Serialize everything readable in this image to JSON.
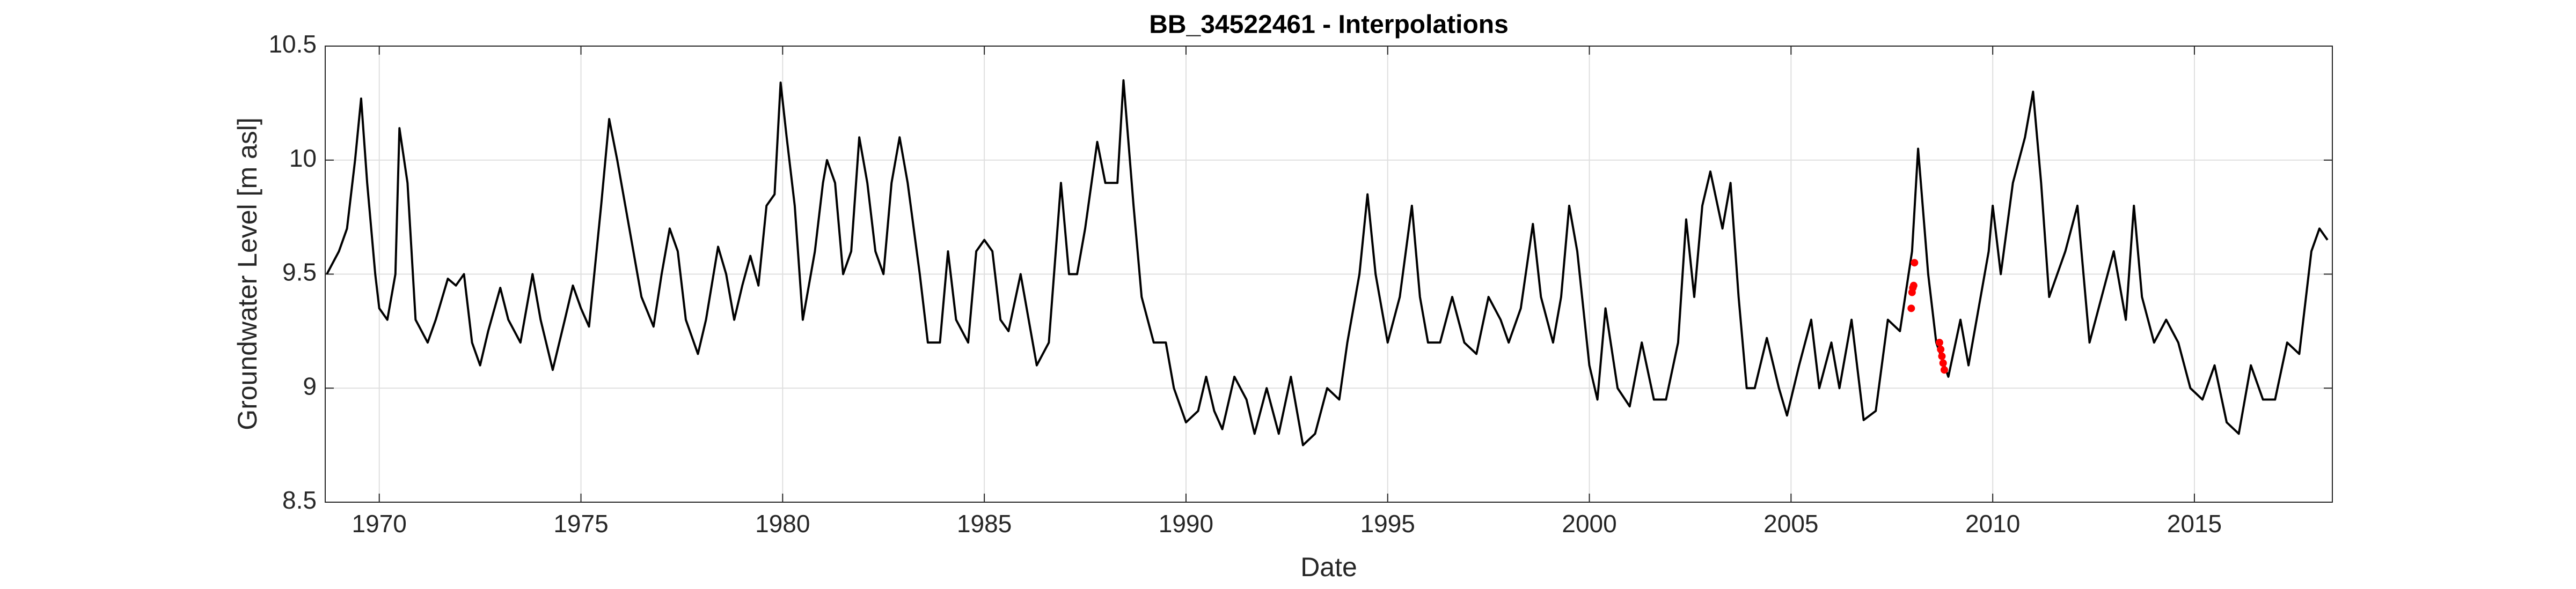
{
  "chart_data": {
    "type": "line",
    "title": "BB_34522461 - Interpolations",
    "x_label": "Date",
    "y_label": "Groundwater Level [m asl]",
    "xlim": [
      1968.66,
      2018.42
    ],
    "xticks": [
      1970,
      1975,
      1980,
      1985,
      1990,
      1995,
      2000,
      2005,
      2010,
      2015
    ],
    "ylim": [
      8.5,
      10.5
    ],
    "yticks": [
      8.5,
      9,
      9.5,
      10,
      10.5
    ],
    "grid": true,
    "series": [
      {
        "color": "#000000",
        "marker": "none",
        "x": [
          1968.7,
          1969.0,
          1969.2,
          1969.4,
          1969.55,
          1969.7,
          1969.9,
          1970.0,
          1970.2,
          1970.4,
          1970.5,
          1970.7,
          1970.9,
          1971.2,
          1971.4,
          1971.7,
          1971.9,
          1972.1,
          1972.3,
          1972.5,
          1972.7,
          1973.0,
          1973.2,
          1973.5,
          1973.8,
          1974.0,
          1974.3,
          1974.6,
          1974.8,
          1975.0,
          1975.2,
          1975.5,
          1975.7,
          1975.9,
          1976.2,
          1976.5,
          1976.8,
          1977.0,
          1977.2,
          1977.4,
          1977.6,
          1977.9,
          1978.1,
          1978.4,
          1978.6,
          1978.8,
          1979.0,
          1979.2,
          1979.4,
          1979.6,
          1979.8,
          1979.95,
          1980.1,
          1980.3,
          1980.5,
          1980.8,
          1981.0,
          1981.1,
          1981.3,
          1981.5,
          1981.7,
          1981.9,
          1982.1,
          1982.3,
          1982.5,
          1982.7,
          1982.9,
          1983.1,
          1983.4,
          1983.6,
          1983.9,
          1984.1,
          1984.3,
          1984.6,
          1984.8,
          1985.0,
          1985.2,
          1985.4,
          1985.6,
          1985.9,
          1986.1,
          1986.3,
          1986.6,
          1986.9,
          1987.1,
          1987.3,
          1987.5,
          1987.8,
          1988.0,
          1988.3,
          1988.45,
          1988.7,
          1988.9,
          1989.2,
          1989.5,
          1989.7,
          1990.0,
          1990.3,
          1990.5,
          1990.7,
          1990.9,
          1991.2,
          1991.5,
          1991.7,
          1992.0,
          1992.3,
          1992.6,
          1992.9,
          1993.2,
          1993.5,
          1993.8,
          1994.0,
          1994.3,
          1994.5,
          1994.7,
          1995.0,
          1995.3,
          1995.6,
          1995.8,
          1996.0,
          1996.3,
          1996.6,
          1996.9,
          1997.2,
          1997.5,
          1997.8,
          1998.0,
          1998.3,
          1998.6,
          1998.8,
          1999.1,
          1999.3,
          1999.5,
          1999.7,
          2000.0,
          2000.2,
          2000.4,
          2000.7,
          2001.0,
          2001.3,
          2001.6,
          2001.9,
          2002.2,
          2002.4,
          2002.6,
          2002.8,
          2003.0,
          2003.3,
          2003.5,
          2003.7,
          2003.9,
          2004.1,
          2004.4,
          2004.7,
          2004.9,
          2005.2,
          2005.5,
          2005.7,
          2006.0,
          2006.2,
          2006.5,
          2006.8,
          2007.1,
          2007.4,
          2007.7,
          2008.0,
          2008.15,
          2008.4,
          2008.6,
          2008.9,
          2009.2,
          2009.4,
          2009.6,
          2009.9,
          2010.0,
          2010.2,
          2010.5,
          2010.8,
          2011.0,
          2011.2,
          2011.4,
          2011.6,
          2011.8,
          2012.1,
          2012.4,
          2012.7,
          2013.0,
          2013.3,
          2013.5,
          2013.7,
          2014.0,
          2014.3,
          2014.6,
          2014.9,
          2015.2,
          2015.5,
          2015.8,
          2016.1,
          2016.4,
          2016.7,
          2017.0,
          2017.3,
          2017.6,
          2017.9,
          2018.1,
          2018.3
        ],
        "values": [
          9.5,
          9.6,
          9.7,
          10.0,
          10.27,
          9.9,
          9.5,
          9.35,
          9.3,
          9.5,
          10.14,
          9.9,
          9.3,
          9.2,
          9.3,
          9.48,
          9.45,
          9.5,
          9.2,
          9.1,
          9.25,
          9.44,
          9.3,
          9.2,
          9.5,
          9.3,
          9.08,
          9.3,
          9.45,
          9.35,
          9.27,
          9.8,
          10.18,
          10.0,
          9.7,
          9.4,
          9.27,
          9.5,
          9.7,
          9.6,
          9.3,
          9.15,
          9.3,
          9.62,
          9.5,
          9.3,
          9.45,
          9.58,
          9.45,
          9.8,
          9.85,
          10.34,
          10.1,
          9.8,
          9.3,
          9.6,
          9.9,
          10.0,
          9.9,
          9.5,
          9.6,
          10.1,
          9.9,
          9.6,
          9.5,
          9.9,
          10.1,
          9.9,
          9.5,
          9.2,
          9.2,
          9.6,
          9.3,
          9.2,
          9.6,
          9.65,
          9.6,
          9.3,
          9.25,
          9.5,
          9.3,
          9.1,
          9.2,
          9.9,
          9.5,
          9.5,
          9.7,
          10.08,
          9.9,
          9.9,
          10.35,
          9.8,
          9.4,
          9.2,
          9.2,
          9.0,
          8.85,
          8.9,
          9.05,
          8.9,
          8.82,
          9.05,
          8.95,
          8.8,
          9.0,
          8.8,
          9.05,
          8.75,
          8.8,
          9.0,
          8.95,
          9.2,
          9.5,
          9.85,
          9.5,
          9.2,
          9.4,
          9.8,
          9.4,
          9.2,
          9.2,
          9.4,
          9.2,
          9.15,
          9.4,
          9.3,
          9.2,
          9.35,
          9.72,
          9.4,
          9.2,
          9.4,
          9.8,
          9.6,
          9.1,
          8.95,
          9.35,
          9.0,
          8.92,
          9.2,
          8.95,
          8.95,
          9.2,
          9.74,
          9.4,
          9.8,
          9.95,
          9.7,
          9.9,
          9.4,
          9.0,
          9.0,
          9.22,
          9.0,
          8.88,
          9.1,
          9.3,
          9.0,
          9.2,
          9.0,
          9.3,
          8.86,
          8.9,
          9.3,
          9.25,
          9.6,
          10.05,
          9.5,
          9.2,
          9.05,
          9.3,
          9.1,
          9.3,
          9.6,
          9.8,
          9.5,
          9.9,
          10.1,
          10.3,
          9.9,
          9.4,
          9.5,
          9.6,
          9.8,
          9.2,
          9.4,
          9.6,
          9.3,
          9.8,
          9.4,
          9.2,
          9.3,
          9.2,
          9.0,
          8.95,
          9.1,
          8.85,
          8.8,
          9.1,
          8.95,
          8.95,
          9.2,
          9.15,
          9.6,
          9.7,
          9.65
        ]
      },
      {
        "color": "#ff0000",
        "marker": "dot",
        "x": [
          2007.98,
          2008.0,
          2008.02,
          2008.04,
          2008.06,
          2008.68,
          2008.71,
          2008.74,
          2008.77,
          2008.8
        ],
        "values": [
          9.35,
          9.42,
          9.44,
          9.45,
          9.55,
          9.2,
          9.17,
          9.14,
          9.11,
          9.08
        ]
      }
    ]
  }
}
